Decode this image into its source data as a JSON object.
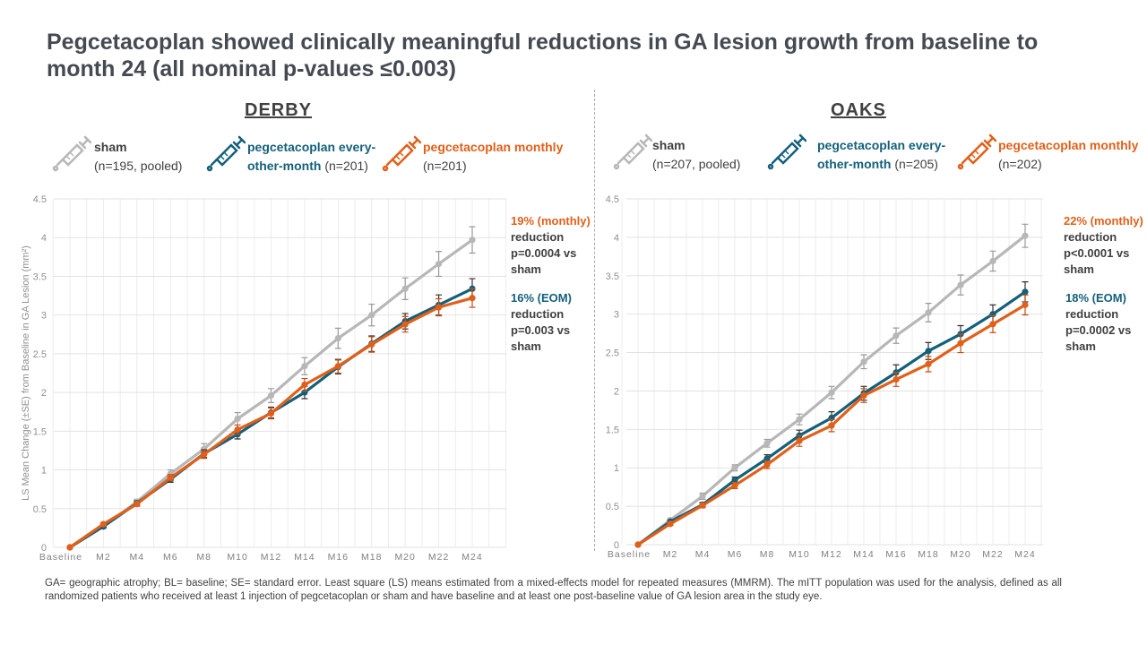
{
  "title": "Pegcetacoplan showed clinically meaningful reductions in GA lesion growth from baseline to month 24 (all nominal p-values ≤0.003)",
  "colors": {
    "sham": "#b7b7b7",
    "eom": "#14607a",
    "monthly": "#e0601a",
    "text": "#404040"
  },
  "panels": [
    {
      "name": "DERBY",
      "legend": [
        {
          "label": "sham",
          "n": "(n=195, pooled)",
          "icon": "syringe-icon"
        },
        {
          "label": "pegcetacoplan every-other-month",
          "n": "(n=201)",
          "icon": "syringe-icon"
        },
        {
          "label": "pegcetacoplan monthly",
          "n": "(n=201)",
          "icon": "syringe-icon"
        }
      ],
      "notes": {
        "monthly_pct": "19% (monthly)",
        "monthly_rest": "reduction p=0.0004 vs sham",
        "eom_pct": "16% (EOM)",
        "eom_rest": "reduction p=0.003 vs sham"
      }
    },
    {
      "name": "OAKS",
      "legend": [
        {
          "label": "sham",
          "n": "(n=207, pooled)",
          "icon": "syringe-icon"
        },
        {
          "label": "pegcetacoplan every-other-month",
          "n": "(n=205)",
          "icon": "syringe-icon"
        },
        {
          "label": "pegcetacoplan monthly",
          "n": "(n=202)",
          "icon": "syringe-icon"
        }
      ],
      "notes": {
        "monthly_pct": "22% (monthly)",
        "monthly_rest": "reduction p<0.0001 vs sham",
        "eom_pct": "18% (EOM)",
        "eom_rest": "reduction p=0.0002 vs sham"
      }
    }
  ],
  "chart_data": [
    {
      "type": "line",
      "title": "DERBY",
      "ylabel": "LS Mean Change (±SE) from Baseline in GA Lesion (mm²)",
      "xlabel": "",
      "ylim": [
        0,
        4.5
      ],
      "yticks": [
        "0",
        "0.5",
        "1",
        "1.5",
        "2",
        "2.5",
        "3",
        "3.5",
        "4",
        "4.5"
      ],
      "grid": true,
      "categories": [
        "Baseline",
        "M2",
        "M4",
        "M6",
        "M8",
        "M10",
        "M12",
        "M14",
        "M16",
        "M18",
        "M20",
        "M22",
        "M24"
      ],
      "series": [
        {
          "name": "sham",
          "key": "sham",
          "values": [
            0,
            0.27,
            0.59,
            0.95,
            1.27,
            1.66,
            1.96,
            2.34,
            2.7,
            3.0,
            3.34,
            3.66,
            3.97
          ],
          "se": [
            0,
            0.02,
            0.03,
            0.05,
            0.07,
            0.08,
            0.09,
            0.11,
            0.13,
            0.14,
            0.14,
            0.16,
            0.17
          ]
        },
        {
          "name": "pegcetacoplan every-other-month",
          "key": "eom",
          "values": [
            0,
            0.27,
            0.57,
            0.88,
            1.21,
            1.46,
            1.74,
            2.0,
            2.33,
            2.63,
            2.92,
            3.13,
            3.34
          ],
          "se": [
            0,
            0.02,
            0.03,
            0.04,
            0.05,
            0.06,
            0.07,
            0.08,
            0.09,
            0.1,
            0.1,
            0.13,
            0.13
          ]
        },
        {
          "name": "pegcetacoplan monthly",
          "key": "monthly",
          "values": [
            0,
            0.3,
            0.56,
            0.9,
            1.2,
            1.52,
            1.73,
            2.1,
            2.34,
            2.62,
            2.88,
            3.1,
            3.22
          ],
          "se": [
            0,
            0.02,
            0.03,
            0.04,
            0.05,
            0.06,
            0.07,
            0.08,
            0.09,
            0.1,
            0.1,
            0.11,
            0.12
          ]
        }
      ]
    },
    {
      "type": "line",
      "title": "OAKS",
      "ylabel": "",
      "xlabel": "",
      "ylim": [
        0,
        4.5
      ],
      "yticks": [
        "0",
        "0.5",
        "1",
        "1.5",
        "2",
        "2.5",
        "3",
        "3.5",
        "4",
        "4.5"
      ],
      "grid": true,
      "categories": [
        "Baseline",
        "M2",
        "M4",
        "M6",
        "M8",
        "M10",
        "M12",
        "M14",
        "M16",
        "M18",
        "M20",
        "M22",
        "M24"
      ],
      "series": [
        {
          "name": "sham",
          "key": "sham",
          "values": [
            0,
            0.32,
            0.63,
            1.0,
            1.32,
            1.63,
            1.98,
            2.38,
            2.72,
            3.02,
            3.38,
            3.69,
            4.02
          ],
          "se": [
            0,
            0.02,
            0.04,
            0.04,
            0.05,
            0.07,
            0.08,
            0.09,
            0.1,
            0.12,
            0.13,
            0.13,
            0.15
          ]
        },
        {
          "name": "pegcetacoplan every-other-month",
          "key": "eom",
          "values": [
            0,
            0.3,
            0.52,
            0.84,
            1.12,
            1.42,
            1.65,
            1.97,
            2.24,
            2.52,
            2.74,
            3.0,
            3.29
          ],
          "se": [
            0,
            0.02,
            0.03,
            0.04,
            0.05,
            0.07,
            0.08,
            0.09,
            0.1,
            0.11,
            0.11,
            0.12,
            0.13
          ]
        },
        {
          "name": "pegcetacoplan monthly",
          "key": "monthly",
          "values": [
            0,
            0.27,
            0.51,
            0.77,
            1.04,
            1.35,
            1.55,
            1.94,
            2.15,
            2.35,
            2.62,
            2.87,
            3.12
          ],
          "se": [
            0,
            0.02,
            0.03,
            0.04,
            0.05,
            0.07,
            0.08,
            0.09,
            0.09,
            0.1,
            0.12,
            0.11,
            0.13
          ]
        }
      ]
    }
  ],
  "footnote": "GA= geographic atrophy; BL= baseline; SE= standard error.  Least square (LS) means estimated from a mixed-effects model for repeated measures (MMRM). The mITT population was used for the analysis, defined as all randomized patients who received at least 1 injection of pegcetacoplan or sham and have baseline and at least one post-baseline value of GA lesion area in the study eye."
}
